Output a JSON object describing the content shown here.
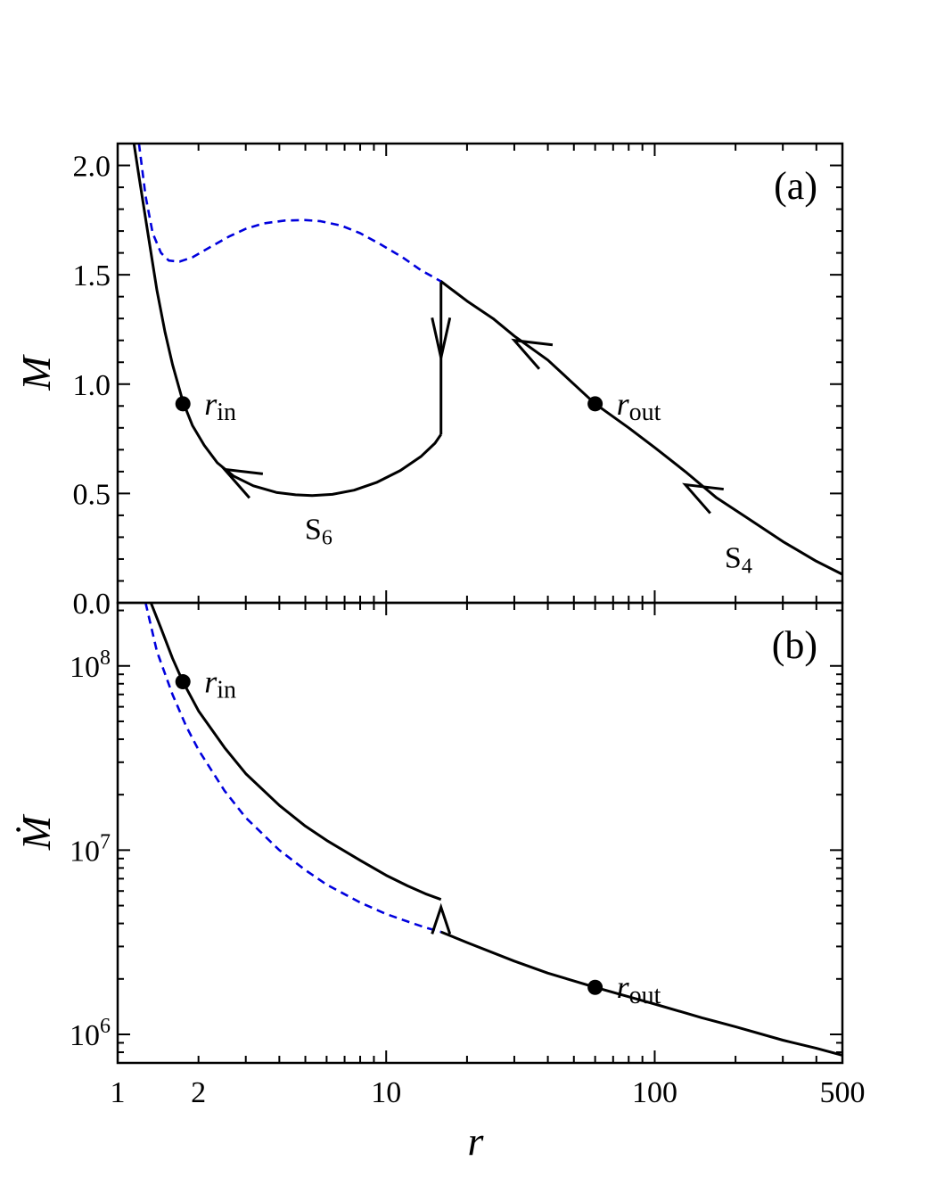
{
  "chart_data": [
    {
      "type": "line",
      "panel_tag": "(a)",
      "ylabel": "M",
      "xlabel": "",
      "x_scale": "log",
      "xlim": [
        1,
        500
      ],
      "ylim": [
        0.0,
        2.1
      ],
      "yticks": [
        0.0,
        0.5,
        1.0,
        1.5,
        2.0
      ],
      "ytick_labels": [
        "0.0",
        "0.5",
        "1.0",
        "1.5",
        "2.0"
      ],
      "grid": false,
      "series": [
        {
          "style": "solid",
          "color": "#000000",
          "x": [
            1.15,
            1.2,
            1.3,
            1.4,
            1.5,
            1.6,
            1.75,
            1.9,
            2.1,
            2.35,
            2.7,
            3.2,
            3.9,
            4.6,
            5.3,
            6.3,
            7.6,
            9.2,
            11.3,
            13.5,
            15.2,
            16.0
          ],
          "y": [
            2.1,
            1.95,
            1.68,
            1.43,
            1.24,
            1.09,
            0.92,
            0.81,
            0.72,
            0.64,
            0.58,
            0.535,
            0.505,
            0.494,
            0.49,
            0.496,
            0.515,
            0.55,
            0.605,
            0.67,
            0.73,
            0.77
          ]
        },
        {
          "style": "solid",
          "color": "#000000",
          "x": [
            16.0,
            16.0,
            20,
            25,
            30,
            40,
            50,
            60,
            80,
            100,
            130,
            170,
            220,
            300,
            400,
            500
          ],
          "y": [
            0.77,
            1.47,
            1.38,
            1.3,
            1.22,
            1.11,
            1.0,
            0.91,
            0.8,
            0.71,
            0.6,
            0.48,
            0.39,
            0.28,
            0.19,
            0.13
          ]
        },
        {
          "style": "dashed",
          "color": "#0000dd",
          "x": [
            1.2,
            1.27,
            1.35,
            1.45,
            1.55,
            1.7,
            1.9,
            2.2,
            2.6,
            3.0,
            3.5,
            4.2,
            5.0,
            5.7,
            6.8,
            8.0,
            9.5,
            11.5,
            13.5,
            16.0
          ],
          "y": [
            2.1,
            1.86,
            1.69,
            1.6,
            1.565,
            1.56,
            1.58,
            1.625,
            1.675,
            1.71,
            1.735,
            1.748,
            1.75,
            1.745,
            1.725,
            1.69,
            1.64,
            1.58,
            1.52,
            1.47
          ]
        }
      ],
      "markers": [
        {
          "x": 1.75,
          "y": 0.91,
          "label": "r",
          "sub": "in"
        },
        {
          "x": 60,
          "y": 0.91,
          "label": "r",
          "sub": "out"
        }
      ],
      "arrows": [
        {
          "x": 2.5,
          "y": 0.61,
          "dir": "ul"
        },
        {
          "x": 30,
          "y": 1.2,
          "dir": "ul"
        },
        {
          "x": 130,
          "y": 0.54,
          "dir": "ul"
        },
        {
          "x": 16.0,
          "y": 1.12,
          "dir": "down"
        }
      ],
      "annotations": [
        {
          "x": 5.6,
          "y": 0.34,
          "main": "S",
          "sub": "6"
        },
        {
          "x": 205,
          "y": 0.21,
          "main": "S",
          "sub": "4"
        }
      ]
    },
    {
      "type": "line",
      "panel_tag": "(b)",
      "ylabel": "Ṁ",
      "xlabel": "r",
      "x_scale": "log",
      "y_scale": "log",
      "xlim": [
        1,
        500
      ],
      "ylim": [
        700000,
        220000000
      ],
      "yticks": [
        1000000,
        10000000,
        100000000
      ],
      "ytick_base": "10",
      "ytick_exps": [
        "6",
        "7",
        "8"
      ],
      "xticks": [
        1,
        2,
        10,
        100,
        500
      ],
      "xtick_labels": [
        "1",
        "2",
        "10",
        "100",
        "500"
      ],
      "grid": false,
      "series": [
        {
          "style": "solid",
          "color": "#000000",
          "x": [
            1.33,
            1.45,
            1.6,
            1.75,
            2.0,
            2.5,
            3.0,
            4.0,
            5.0,
            6.0,
            8.0,
            10.0,
            12.0,
            14.0,
            16.0
          ],
          "y": [
            220000000,
            160000000,
            110000000,
            82000000,
            57000000,
            36000000,
            26000000,
            17500000,
            13500000,
            11300000,
            8800000,
            7300000,
            6400000,
            5800000,
            5400000
          ]
        },
        {
          "style": "solid",
          "color": "#000000",
          "x": [
            16.0,
            20,
            30,
            40,
            60,
            80,
            100,
            150,
            200,
            300,
            400,
            500
          ],
          "y": [
            3600000,
            3150000,
            2500000,
            2150000,
            1800000,
            1600000,
            1460000,
            1230000,
            1100000,
            930000,
            840000,
            770000
          ]
        },
        {
          "style": "dashed",
          "color": "#0000dd",
          "x": [
            1.27,
            1.4,
            1.6,
            1.8,
            2.0,
            2.5,
            3.0,
            4.0,
            5.0,
            6.0,
            8.0,
            10.0,
            12.0,
            14.0,
            16.0
          ],
          "y": [
            220000000,
            120000000,
            70000000,
            47000000,
            35000000,
            21000000,
            15000000,
            10000000,
            7800000,
            6500000,
            5200000,
            4500000,
            4100000,
            3800000,
            3600000
          ]
        }
      ],
      "markers": [
        {
          "x": 1.75,
          "y": 82000000,
          "label": "r",
          "sub": "in"
        },
        {
          "x": 60,
          "y": 1800000,
          "label": "r",
          "sub": "out"
        }
      ],
      "arrows": [
        {
          "x": 16.0,
          "y": 4900000,
          "dir": "up"
        }
      ]
    }
  ]
}
